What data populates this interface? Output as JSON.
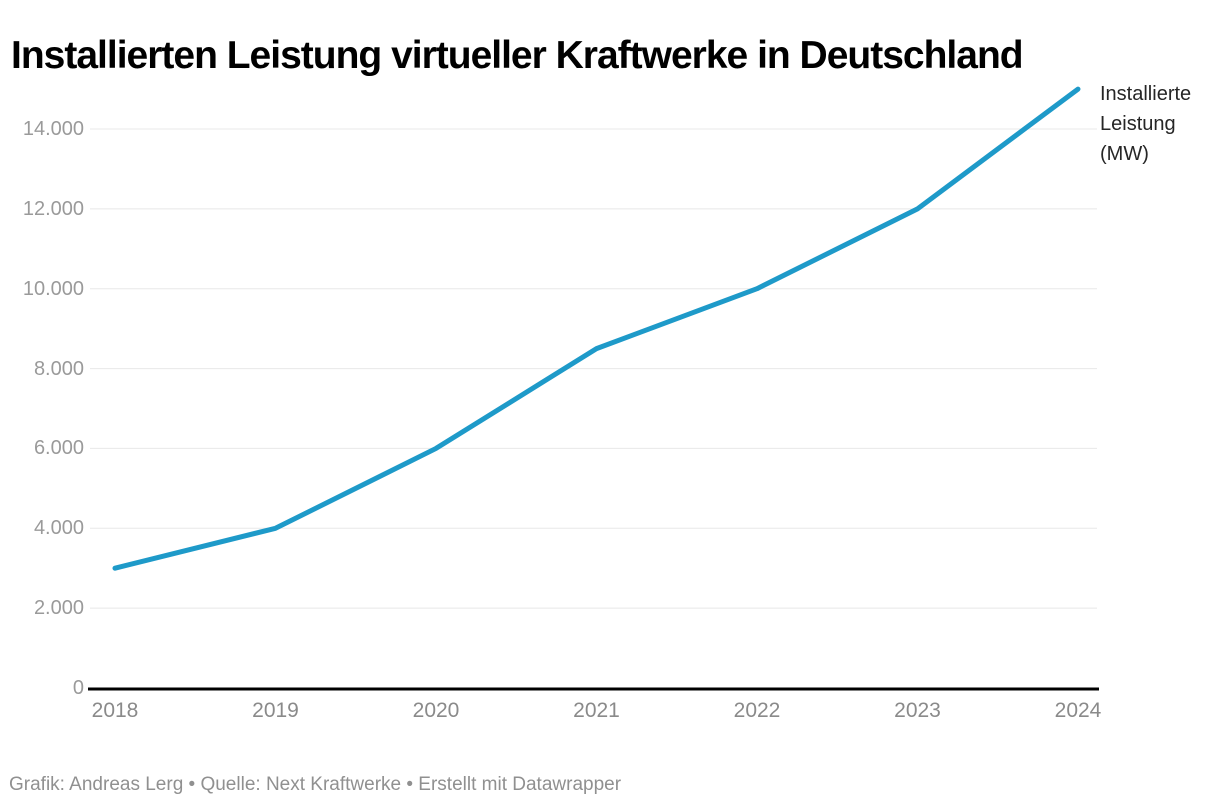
{
  "title": "Installierten Leistung virtueller Kraftwerke in Deutschland",
  "legend": {
    "lines": [
      "Installierte",
      "Leistung",
      "(MW)"
    ]
  },
  "footer": "Grafik: Andreas Lerg • Quelle: Next Kraftwerke • Erstellt mit Datawrapper",
  "colors": {
    "line": "#1e9ac9",
    "grid": "#e8e8e8",
    "baseline": "#000000",
    "ytick_text": "#9a9a9a",
    "xtick_text": "#8a8a8a",
    "legend_text": "#262626",
    "footer_text": "#909090",
    "title_text": "#000000"
  },
  "chart_data": {
    "type": "line",
    "title": "Installierten Leistung virtueller Kraftwerke in Deutschland",
    "x": [
      2018,
      2019,
      2020,
      2021,
      2022,
      2023,
      2024
    ],
    "series": [
      {
        "name": "Installierte Leistung (MW)",
        "values": [
          3000,
          4000,
          6000,
          8500,
          10000,
          12000,
          15000
        ]
      }
    ],
    "xlabel": "",
    "ylabel": "Installierte Leistung (MW)",
    "ylim": [
      0,
      15000
    ],
    "yticks": [
      0,
      2000,
      4000,
      6000,
      8000,
      10000,
      12000,
      14000
    ],
    "ytick_labels": [
      "0",
      "2.000",
      "4.000",
      "6.000",
      "8.000",
      "10.000",
      "12.000",
      "14.000"
    ],
    "xtick_labels": [
      "2018",
      "2019",
      "2020",
      "2021",
      "2022",
      "2023",
      "2024"
    ],
    "grid": "horizontal",
    "legend_position": "right-of-line-end"
  }
}
